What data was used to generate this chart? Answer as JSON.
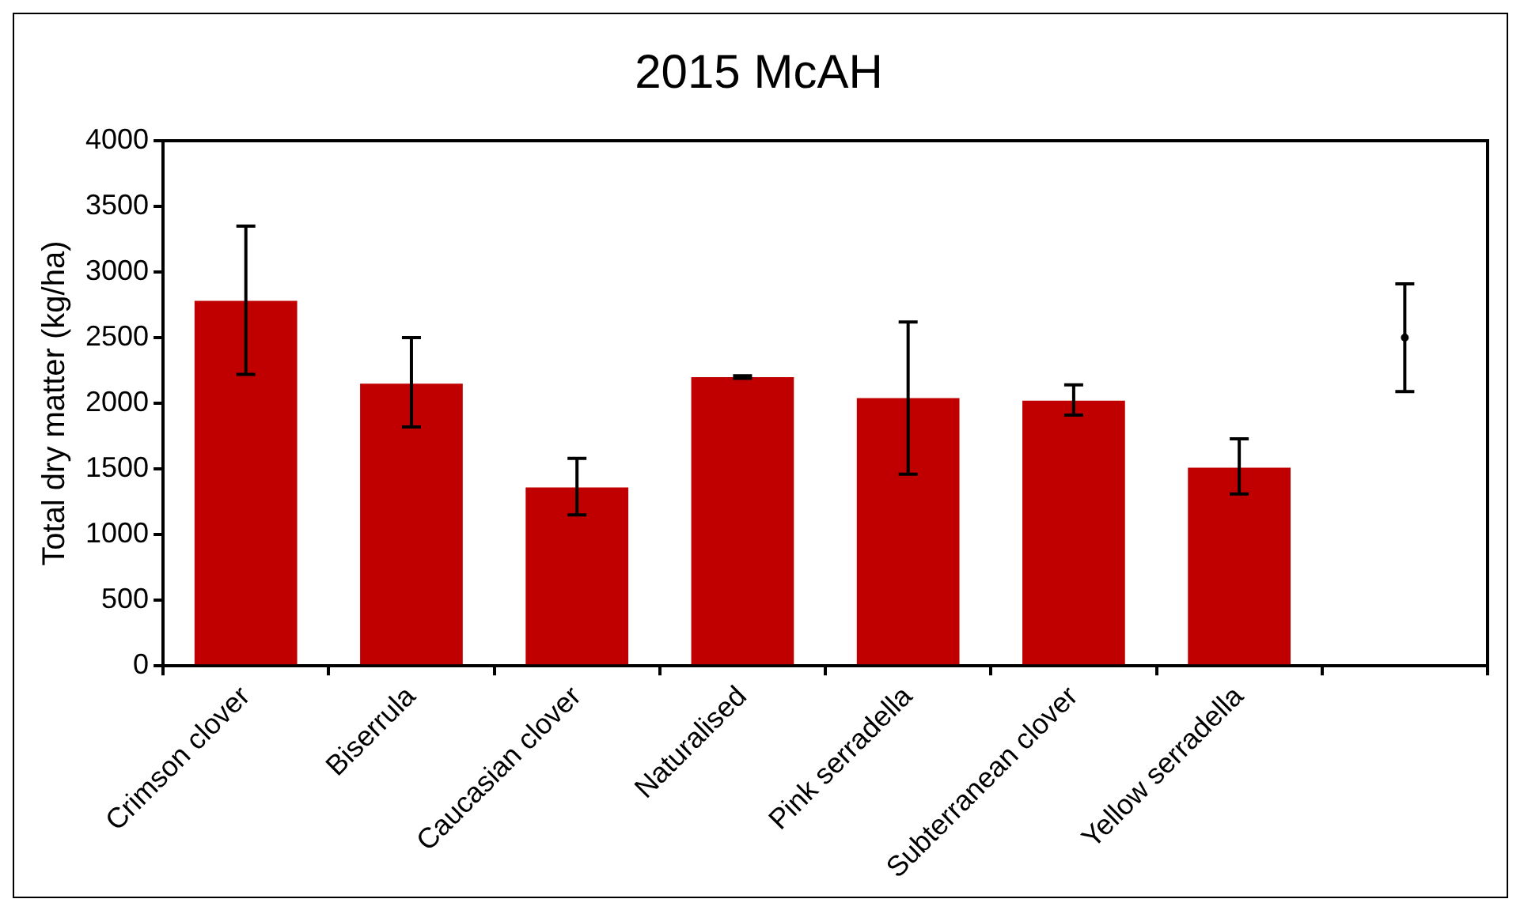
{
  "chart_data": {
    "type": "bar",
    "title": "2015 McAH",
    "ylabel": "Total dry matter (kg/ha)",
    "categories": [
      "Crimson clover",
      "Biserrula",
      "Caucasian clover",
      "Naturalised",
      "Pink serradella",
      "Subterranean clover",
      "Yellow serradella",
      null
    ],
    "series": [
      {
        "color": "#c00000",
        "values": [
          2780,
          2150,
          1360,
          2200,
          2040,
          2020,
          1510,
          null
        ],
        "errors": [
          [
            2220,
            3350
          ],
          [
            1820,
            2500
          ],
          [
            1150,
            1580
          ],
          10,
          [
            1460,
            2620
          ],
          [
            1910,
            2140
          ],
          [
            1310,
            1730
          ],
          null
        ]
      },
      {
        "type": "scatter",
        "color": "#000000",
        "values": [
          null,
          null,
          null,
          null,
          null,
          null,
          null,
          2500
        ],
        "errors": [
          null,
          null,
          null,
          null,
          null,
          null,
          null,
          410
        ]
      }
    ],
    "ylim": [
      0,
      4000
    ],
    "yticks": [
      0,
      500,
      1000,
      1500,
      2000,
      2500,
      3000,
      3500,
      4000
    ],
    "grid": false,
    "legend": false
  }
}
